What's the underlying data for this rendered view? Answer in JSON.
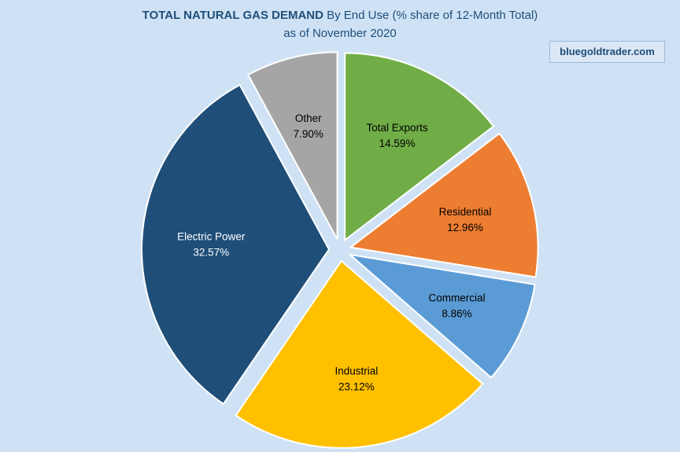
{
  "title": {
    "bold": "TOTAL NATURAL GAS DEMAND",
    "rest": " By End Use (% share of 12-Month Total)",
    "subtitle": "as of November 2020"
  },
  "watermark": "bluegoldtrader.com",
  "chart_data": {
    "type": "pie",
    "title": "TOTAL NATURAL GAS DEMAND By End Use (% share of 12-Month Total)",
    "subtitle": "as of November 2020",
    "labels": [
      "Total Exports",
      "Residential",
      "Commercial",
      "Industrial",
      "Electric Power",
      "Other"
    ],
    "values": [
      14.59,
      12.96,
      8.86,
      23.12,
      32.57,
      7.9
    ],
    "value_labels": [
      "14.59%",
      "12.96%",
      "8.86%",
      "23.12%",
      "32.57%",
      "7.90%"
    ],
    "colors": [
      "#70ad47",
      "#ed7d31",
      "#5b9bd5",
      "#ffc000",
      "#1f4e79",
      "#a5a5a5"
    ],
    "label_colors": [
      "#000000",
      "#000000",
      "#000000",
      "#000000",
      "#ffffff",
      "#000000"
    ],
    "start_angle_deg": 0,
    "direction": "clockwise",
    "exploded": true,
    "legend": "none"
  }
}
